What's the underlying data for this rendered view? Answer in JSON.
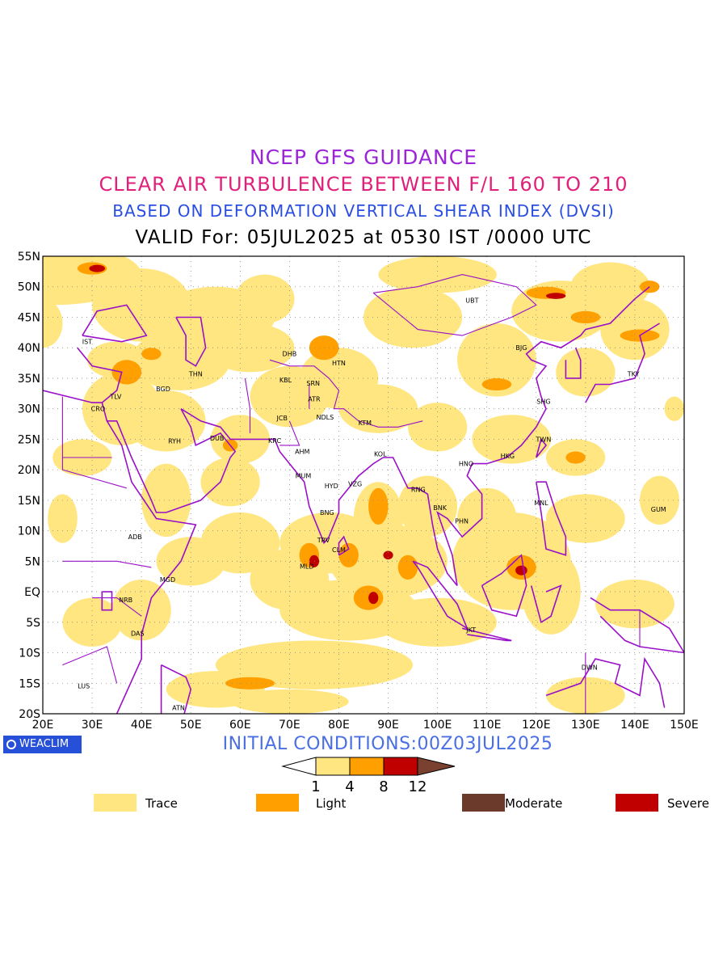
{
  "titles": {
    "line1": "NCEP GFS GUIDANCE",
    "line2": "CLEAR AIR TURBULENCE BETWEEN F/L 160 TO 210",
    "line3": "BASED ON DEFORMATION VERTICAL SHEAR INDEX (DVSI)",
    "line4": "VALID For: 05JUL2025 at 0530 IST /0000 UTC"
  },
  "axes": {
    "lat_labels": [
      "55N",
      "50N",
      "45N",
      "40N",
      "35N",
      "30N",
      "25N",
      "20N",
      "15N",
      "10N",
      "5N",
      "EQ",
      "5S",
      "10S",
      "15S",
      "20S"
    ],
    "lon_labels": [
      "20E",
      "30E",
      "40E",
      "50E",
      "60E",
      "70E",
      "80E",
      "90E",
      "100E",
      "110E",
      "120E",
      "130E",
      "140E",
      "150E"
    ],
    "lon_range": [
      20,
      150
    ],
    "lat_range": [
      -20,
      55
    ],
    "grid": true
  },
  "stations": [
    {
      "code": "UBT",
      "lon": 107,
      "lat": 47.8
    },
    {
      "code": "IST",
      "lon": 29,
      "lat": 41
    },
    {
      "code": "BJG",
      "lon": 117,
      "lat": 40
    },
    {
      "code": "DHB",
      "lon": 70,
      "lat": 39
    },
    {
      "code": "HTN",
      "lon": 80,
      "lat": 37.5
    },
    {
      "code": "THN",
      "lon": 51,
      "lat": 35.7
    },
    {
      "code": "KBL",
      "lon": 69.2,
      "lat": 34.7
    },
    {
      "code": "SRN",
      "lon": 74.8,
      "lat": 34.2
    },
    {
      "code": "TKY",
      "lon": 139.7,
      "lat": 35.7
    },
    {
      "code": "TLV",
      "lon": 34.8,
      "lat": 32
    },
    {
      "code": "BGD",
      "lon": 44.4,
      "lat": 33.3
    },
    {
      "code": "ATR",
      "lon": 75,
      "lat": 31.6
    },
    {
      "code": "SHG",
      "lon": 121.5,
      "lat": 31.2
    },
    {
      "code": "CRO",
      "lon": 31.2,
      "lat": 30
    },
    {
      "code": "JCB",
      "lon": 68.5,
      "lat": 28.5
    },
    {
      "code": "NDLS",
      "lon": 77.2,
      "lat": 28.6
    },
    {
      "code": "KTM",
      "lon": 85.3,
      "lat": 27.7
    },
    {
      "code": "RYH",
      "lon": 46.7,
      "lat": 24.7
    },
    {
      "code": "DUB",
      "lon": 55.3,
      "lat": 25.2
    },
    {
      "code": "KRC",
      "lon": 67,
      "lat": 24.8
    },
    {
      "code": "TWN",
      "lon": 121.5,
      "lat": 25
    },
    {
      "code": "AHM",
      "lon": 72.6,
      "lat": 23
    },
    {
      "code": "KOL",
      "lon": 88.4,
      "lat": 22.6
    },
    {
      "code": "HKG",
      "lon": 114.2,
      "lat": 22.3
    },
    {
      "code": "HNO",
      "lon": 105.8,
      "lat": 21
    },
    {
      "code": "MUM",
      "lon": 72.8,
      "lat": 19
    },
    {
      "code": "HYD",
      "lon": 78.5,
      "lat": 17.4
    },
    {
      "code": "VZG",
      "lon": 83.3,
      "lat": 17.7
    },
    {
      "code": "RNG",
      "lon": 96.1,
      "lat": 16.8
    },
    {
      "code": "BNK",
      "lon": 100.5,
      "lat": 13.8
    },
    {
      "code": "MNL",
      "lon": 121,
      "lat": 14.6
    },
    {
      "code": "GUM",
      "lon": 144.8,
      "lat": 13.5
    },
    {
      "code": "BNG",
      "lon": 77.6,
      "lat": 13
    },
    {
      "code": "PHN",
      "lon": 104.9,
      "lat": 11.6
    },
    {
      "code": "ADB",
      "lon": 38.7,
      "lat": 9
    },
    {
      "code": "TRV",
      "lon": 76.9,
      "lat": 8.5
    },
    {
      "code": "CLM",
      "lon": 80,
      "lat": 6.9
    },
    {
      "code": "MLD",
      "lon": 73.5,
      "lat": 4.2
    },
    {
      "code": "MGD",
      "lon": 45.3,
      "lat": 2
    },
    {
      "code": "NRB",
      "lon": 36.8,
      "lat": -1.3
    },
    {
      "code": "DAS",
      "lon": 39.2,
      "lat": -6.8
    },
    {
      "code": "JKT",
      "lon": 106.8,
      "lat": -6.2
    },
    {
      "code": "DWN",
      "lon": 130.8,
      "lat": -12.4
    },
    {
      "code": "LUS",
      "lon": 28.3,
      "lat": -15.4
    },
    {
      "code": "ATN",
      "lon": 47.5,
      "lat": -19
    }
  ],
  "colorbar": {
    "ticks": [
      "1",
      "4",
      "8",
      "12"
    ],
    "colors": [
      "#ffe680",
      "#ffa000",
      "#c00000",
      "#7a4030"
    ]
  },
  "initial_conditions": "INITIAL CONDITIONS:00Z03JUL2025",
  "badge": "WEACLIM",
  "legend": [
    {
      "label": "Trace",
      "color": "#ffe680"
    },
    {
      "label": "Light",
      "color": "#ffa000"
    },
    {
      "label": "Moderate",
      "color": "#6b3a2a"
    },
    {
      "label": "Severe",
      "color": "#c00000"
    }
  ],
  "colors": {
    "boundary": "#9a10c8",
    "trace": "#ffe680",
    "light": "#ffa000",
    "severe": "#c00000"
  }
}
